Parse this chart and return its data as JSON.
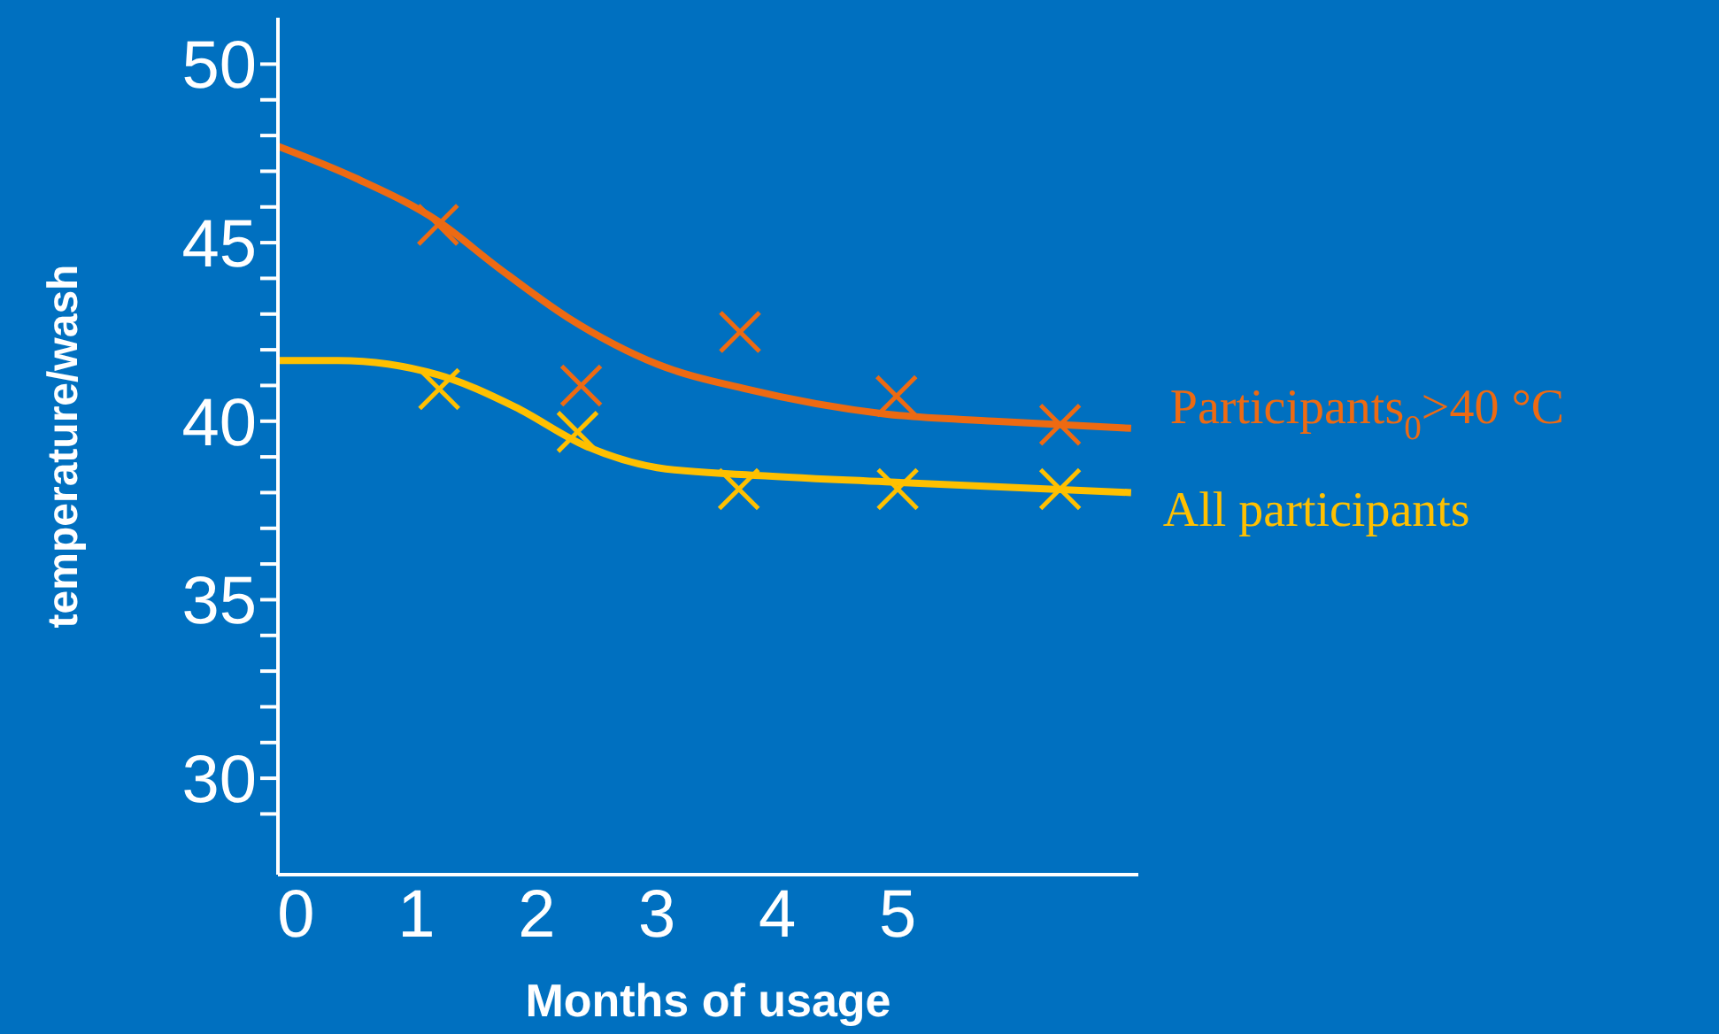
{
  "chart_data": {
    "type": "scatter",
    "xlabel": "Months of usage",
    "ylabel": "temperature/wash",
    "xlim": [
      -0.15,
      7
    ],
    "xticks": [
      0,
      1,
      2,
      3,
      4,
      5
    ],
    "ylim": [
      27.3,
      51.3
    ],
    "yticks": [
      {
        "value": 29,
        "label": null
      },
      30,
      {
        "value": 31,
        "label": null
      },
      {
        "value": 32,
        "label": null
      },
      {
        "value": 33,
        "label": null
      },
      {
        "value": 34,
        "label": null
      },
      35,
      {
        "value": 36,
        "label": null
      },
      {
        "value": 37,
        "label": null
      },
      {
        "value": 38,
        "label": null
      },
      {
        "value": 39,
        "label": null
      },
      40,
      {
        "value": 41,
        "label": null
      },
      {
        "value": 42,
        "label": null
      },
      {
        "value": 43,
        "label": null
      },
      {
        "value": 44,
        "label": null
      },
      45,
      {
        "value": 46,
        "label": null
      },
      {
        "value": 47,
        "label": null
      },
      {
        "value": 48,
        "label": null
      },
      {
        "value": 49,
        "label": null
      },
      50
    ],
    "grid": false,
    "legend": false,
    "series": [
      {
        "type": "line",
        "marker": "none",
        "name": "Participants$_{0}$>40 °C",
        "color": "#ed6a12",
        "x": [
          -0.15,
          0.5,
          1.18,
          1.68,
          2.26,
          3.0,
          3.74,
          4.9,
          5.8,
          6.94
        ],
        "values": [
          47.7,
          46.8,
          45.6,
          44.3,
          42.9,
          41.6,
          40.9,
          40.2,
          40.0,
          39.8
        ]
      },
      {
        "type": "line",
        "marker": "none",
        "name": "All participants",
        "color": "#ffc000",
        "x": [
          -0.15,
          0.35,
          1.18,
          1.82,
          2.41,
          3.0,
          3.74,
          4.9,
          6.94
        ],
        "values": [
          41.7,
          41.7,
          41.3,
          40.4,
          39.3,
          38.7,
          38.5,
          38.3,
          38.0
        ]
      },
      {
        "marker": "cross",
        "color": "#ed6a12",
        "x": [
          1.18,
          2.37,
          3.69,
          4.99,
          6.35
        ],
        "values": [
          45.5,
          41.0,
          42.5,
          40.7,
          39.9
        ]
      },
      {
        "marker": "cross",
        "color": "#ffc000",
        "x": [
          1.19,
          2.34,
          3.68,
          5.0,
          6.35
        ],
        "values": [
          40.9,
          39.7,
          38.1,
          38.1,
          38.1
        ]
      }
    ]
  }
}
